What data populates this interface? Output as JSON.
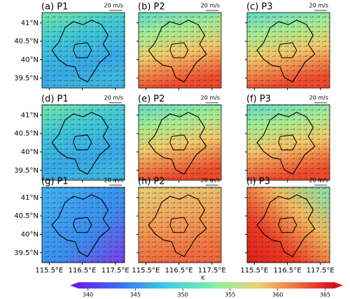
{
  "panels": [
    {
      "label": "(a) P1"
    },
    {
      "label": "(b) P2"
    },
    {
      "label": "(c) P3"
    },
    {
      "label": "(d) P1"
    },
    {
      "label": "(e) P2"
    },
    {
      "label": "(f) P3"
    },
    {
      "label": "(g) P1"
    },
    {
      "label": "(h) P2"
    },
    {
      "label": "(i) P3"
    }
  ],
  "scale_label": "20 m/s",
  "latlim": [
    39.23,
    41.28
  ],
  "lonlim": [
    115.28,
    117.78
  ],
  "lat_ticks": [
    {
      "value": 41,
      "label": "41°N"
    },
    {
      "value": 40.5,
      "label": "40.5°N"
    },
    {
      "value": 40,
      "label": "40°N"
    },
    {
      "value": 39.5,
      "label": "39.5°N"
    }
  ],
  "lon_ticks": [
    {
      "value": 115.5,
      "label": "115.5°E"
    },
    {
      "value": 116.5,
      "label": "116.5°E"
    },
    {
      "value": 117.5,
      "label": "117.5°E"
    }
  ],
  "colorbar": {
    "label": "K",
    "lim": [
      339,
      366
    ],
    "ticks": [
      340,
      345,
      350,
      355,
      360,
      365
    ]
  }
}
